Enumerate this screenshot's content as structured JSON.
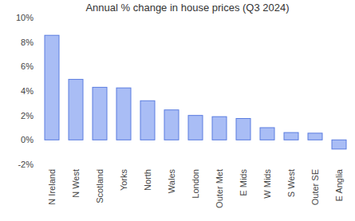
{
  "chart_data": {
    "type": "bar",
    "title": "Annual % change in house prices (Q3 2024)",
    "categories": [
      "N Ireland",
      "N West",
      "Scotland",
      "Yorks",
      "North",
      "Wales",
      "London",
      "Outer Met",
      "E Mids",
      "W Mids",
      "S West",
      "Outer SE",
      "E Anglia"
    ],
    "values": [
      8.55,
      4.95,
      4.3,
      4.25,
      3.2,
      2.45,
      2.0,
      1.9,
      1.75,
      1.0,
      0.6,
      0.55,
      -0.75
    ],
    "color": "#a9bdf5",
    "ylim": [
      -2,
      10
    ],
    "yticks": [
      {
        "value": -2,
        "label": "-2%"
      },
      {
        "value": 0,
        "label": "0%"
      },
      {
        "value": 2,
        "label": "2%"
      },
      {
        "value": 4,
        "label": "4%"
      },
      {
        "value": 6,
        "label": "6%"
      },
      {
        "value": 8,
        "label": "8%"
      },
      {
        "value": 10,
        "label": "10%"
      }
    ],
    "grid": false
  }
}
